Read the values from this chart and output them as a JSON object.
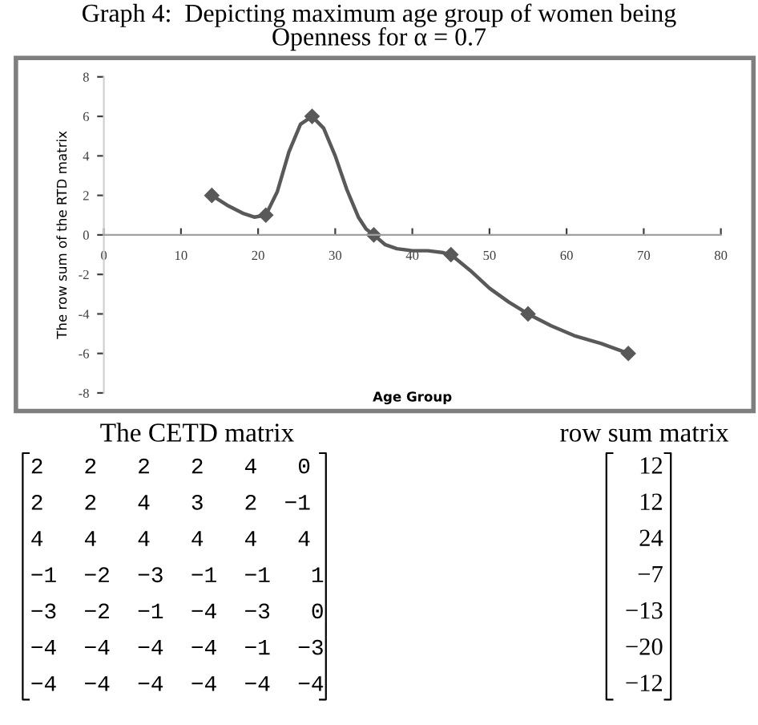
{
  "chart_data": {
    "type": "line",
    "title": "Graph 4:  Depicting maximum age group of women being\nOpenness for α = 0.7",
    "xlabel": "Age Group",
    "ylabel": "The row sum of the RTD matrix",
    "x": [
      14,
      21,
      27,
      35,
      45,
      55,
      68
    ],
    "series": [
      {
        "marker": "none",
        "color": "#595959",
        "x": [
          14,
          16,
          18,
          19.5,
          21,
          22.5,
          24,
          25.5,
          27,
          28.5,
          30,
          31.5,
          33,
          34,
          35,
          36.5,
          38,
          40,
          42,
          44,
          45,
          47.5,
          50,
          52.5,
          55,
          58,
          61,
          64.5,
          68
        ],
        "values": [
          2,
          1.5,
          1.1,
          0.9,
          1,
          2.2,
          4.2,
          5.6,
          6,
          5.4,
          4,
          2.3,
          0.9,
          0.3,
          0,
          -0.5,
          -0.7,
          -0.8,
          -0.8,
          -0.9,
          -1,
          -1.8,
          -2.7,
          -3.4,
          -4,
          -4.6,
          -5.1,
          -5.5,
          -6
        ]
      },
      {
        "type": "scatter",
        "marker": "diamond",
        "color": "#595959",
        "values": [
          2,
          1,
          6,
          0,
          -1,
          -4,
          -6
        ]
      }
    ],
    "xlim": [
      0,
      80
    ],
    "xticks": [
      0,
      10,
      20,
      30,
      40,
      50,
      60,
      70,
      80
    ],
    "ylim": [
      -8,
      8
    ],
    "yticks": [
      -8,
      -6,
      -4,
      -2,
      0,
      2,
      4,
      6,
      8
    ],
    "line_style": "solid",
    "grid": false,
    "legend": false,
    "annotations": [
      "The CETD matrix",
      "row sum matrix",
      "2   2   2   2   4   0",
      "2   2   4   3   2  −1",
      "4   4   4   4   4   4",
      "−1  −2  −3  −1  −1   1",
      "−3  −2  −1  −4  −3   0",
      "−4  −4  −4  −4  −1  −3",
      "−4  −4  −4  −4  −4  −4",
      "12",
      "12",
      "24",
      "−7",
      "−13",
      "−20",
      "−12"
    ]
  }
}
